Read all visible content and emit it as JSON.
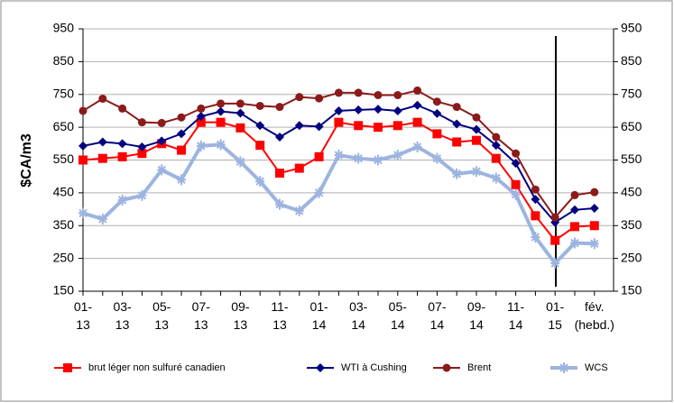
{
  "chart_data": {
    "type": "line",
    "ylabel": "$CA/m3",
    "categories": [
      "01-\n13",
      null,
      "03-\n13",
      null,
      "05-\n13",
      null,
      "07-\n13",
      null,
      "09-\n13",
      null,
      "11-\n13",
      null,
      "01-\n14",
      null,
      "03-\n14",
      null,
      "05-\n14",
      null,
      "07-\n14",
      null,
      "09-\n14",
      null,
      "11-\n14",
      null,
      "01-\n15",
      null,
      "fév.\n(hebd.)"
    ],
    "ylim": [
      150,
      950
    ],
    "yticks": [
      150,
      250,
      350,
      450,
      550,
      650,
      750,
      850,
      950
    ],
    "y2lim": [
      150,
      950
    ],
    "y2ticks": [
      150,
      250,
      350,
      450,
      550,
      650,
      750,
      850,
      950
    ],
    "grid": true,
    "legend": "bottom",
    "series": [
      {
        "name": "brut léger non sulfuré canadien",
        "color": "#ff0000",
        "marker": "square",
        "values": [
          550,
          555,
          560,
          570,
          600,
          580,
          665,
          665,
          648,
          595,
          510,
          525,
          560,
          665,
          655,
          650,
          655,
          665,
          630,
          605,
          610,
          555,
          475,
          380,
          305,
          347,
          350
        ]
      },
      {
        "name": "WTI à Cushing",
        "color": "#000080",
        "marker": "diamond",
        "values": [
          593,
          605,
          600,
          590,
          608,
          630,
          683,
          698,
          693,
          655,
          620,
          655,
          652,
          700,
          703,
          705,
          700,
          717,
          692,
          660,
          643,
          595,
          540,
          430,
          360,
          398,
          403
        ]
      },
      {
        "name": "Brent",
        "color": "#8b1a1a",
        "marker": "circle",
        "values": [
          700,
          737,
          707,
          665,
          663,
          680,
          707,
          722,
          722,
          715,
          712,
          742,
          738,
          755,
          755,
          748,
          748,
          762,
          728,
          712,
          680,
          620,
          570,
          460,
          375,
          443,
          452
        ]
      },
      {
        "name": "WCS",
        "color": "#9db4e0",
        "marker": "star",
        "values": [
          388,
          370,
          428,
          442,
          520,
          490,
          593,
          597,
          545,
          485,
          415,
          395,
          450,
          565,
          555,
          550,
          565,
          590,
          555,
          508,
          515,
          495,
          445,
          315,
          235,
          297,
          295
        ]
      }
    ]
  }
}
